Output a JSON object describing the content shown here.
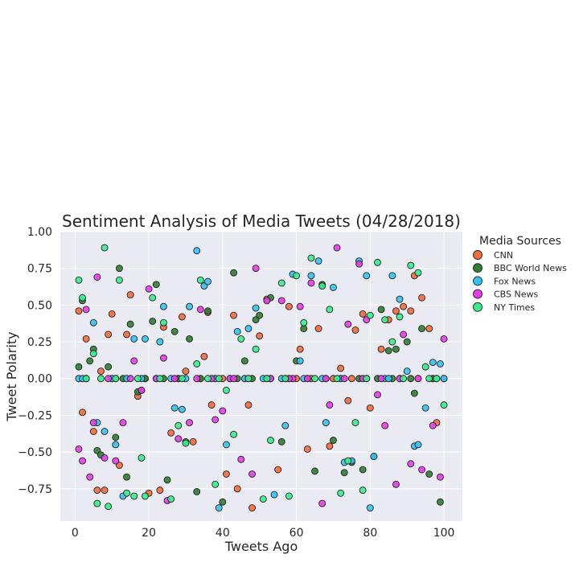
{
  "chart_data": {
    "type": "scatter",
    "title": "Sentiment Analysis of Media Tweets (04/28/2018)",
    "xlabel": "Tweets Ago",
    "ylabel": "Tweet Polarity",
    "xlim": [
      -4,
      105
    ],
    "ylim": [
      -0.97,
      1.0
    ],
    "xticks": [
      0,
      20,
      40,
      60,
      80,
      100
    ],
    "yticks": [
      -0.75,
      -0.5,
      -0.25,
      0.0,
      0.25,
      0.5,
      0.75,
      1.0
    ],
    "xtick_labels": [
      "0",
      "20",
      "40",
      "60",
      "80",
      "100"
    ],
    "ytick_labels": [
      "−0.75",
      "−0.50",
      "−0.25",
      "0.00",
      "0.25",
      "0.50",
      "0.75",
      "1.00"
    ],
    "grid": true,
    "background": "#eaeaf2",
    "legend": {
      "title": "Media Sources",
      "placement": "outside-right"
    },
    "series": [
      {
        "name": "CNN",
        "color": "#f36a3d",
        "x": [
          1,
          2,
          3,
          6,
          7,
          8,
          10,
          12,
          15,
          20,
          23,
          26,
          29,
          32,
          35,
          37,
          41,
          44,
          47,
          50,
          52,
          55,
          58,
          61,
          63,
          66,
          69,
          72,
          74,
          76,
          78,
          80,
          83,
          85,
          87,
          89,
          91,
          92,
          94,
          96,
          98,
          100,
          5,
          9,
          11,
          14,
          17,
          19,
          24,
          28,
          30,
          34,
          36,
          40,
          43,
          46,
          48,
          53,
          57,
          60,
          64,
          70,
          75,
          79,
          88,
          93,
          97
        ],
        "y": [
          0.46,
          -0.23,
          0.27,
          -0.76,
          0.05,
          -0.76,
          0.44,
          -0.59,
          0.57,
          -0.78,
          -0.76,
          -0.37,
          0.42,
          -0.43,
          0.15,
          -0.18,
          -0.65,
          -0.75,
          -0.18,
          0.29,
          0.54,
          -0.62,
          0.49,
          0.2,
          -0.48,
          0.34,
          -0.46,
          0.07,
          -0.15,
          0.33,
          0.44,
          -0.2,
          0.2,
          0.4,
          0.46,
          0.49,
          0.46,
          0.7,
          0.55,
          0.34,
          -0.3,
          0.0,
          -0.36,
          0.3,
          0.0,
          0.3,
          -0.12,
          0.0,
          0.35,
          0.0,
          0.05,
          0.0,
          0.45,
          0.0,
          0.43,
          0.0,
          -0.88,
          0.0,
          0.0,
          0.0,
          0.0,
          0.0,
          0.0,
          0.0,
          0.0,
          0.0,
          0.0
        ]
      },
      {
        "name": "BBC World News",
        "color": "#2f7d32",
        "x": [
          1,
          2,
          4,
          5,
          6,
          7,
          9,
          11,
          12,
          14,
          15,
          17,
          18,
          21,
          22,
          25,
          27,
          30,
          31,
          33,
          36,
          40,
          43,
          46,
          49,
          50,
          53,
          56,
          60,
          62,
          65,
          67,
          70,
          73,
          75,
          78,
          81,
          83,
          85,
          87,
          90,
          92,
          94,
          96,
          99,
          3,
          10,
          13,
          19,
          24,
          28,
          34,
          38,
          44,
          48,
          52,
          58,
          63,
          68,
          72,
          77,
          82,
          86,
          91,
          97
        ],
        "y": [
          0.08,
          0.53,
          0.12,
          0.2,
          -0.49,
          -0.52,
          0.08,
          -0.4,
          0.75,
          -0.67,
          0.37,
          -0.09,
          -0.08,
          0.39,
          0.64,
          -0.69,
          0.32,
          -0.43,
          0.27,
          -0.77,
          0.46,
          -0.84,
          0.72,
          0.12,
          0.4,
          0.43,
          0.55,
          -0.43,
          0.12,
          0.34,
          -0.63,
          0.64,
          -0.42,
          -0.64,
          -0.57,
          -0.62,
          -0.53,
          0.47,
          0.19,
          0.2,
          0.25,
          -0.1,
          0.34,
          -0.65,
          -0.84,
          0.0,
          0.0,
          0.0,
          0.0,
          0.0,
          0.0,
          0.0,
          0.0,
          0.0,
          0.0,
          0.0,
          0.0,
          0.0,
          0.0,
          0.0,
          0.0,
          0.0,
          0.0,
          0.0,
          0.0
        ]
      },
      {
        "name": "Fox News",
        "color": "#33c3f0",
        "x": [
          1,
          3,
          5,
          8,
          11,
          13,
          16,
          19,
          23,
          24,
          27,
          29,
          31,
          33,
          35,
          36,
          39,
          41,
          44,
          47,
          49,
          51,
          54,
          57,
          59,
          61,
          64,
          66,
          68,
          70,
          73,
          75,
          77,
          79,
          81,
          84,
          86,
          88,
          90,
          92,
          95,
          97,
          99,
          100,
          2,
          6,
          10,
          14,
          18,
          22,
          26,
          30,
          38,
          42,
          46,
          53,
          56,
          62,
          67,
          72,
          80,
          85,
          93,
          98
        ],
        "y": [
          0.0,
          0.0,
          0.38,
          -0.36,
          -0.45,
          -0.8,
          0.27,
          0.27,
          0.25,
          0.49,
          -0.2,
          -0.21,
          0.49,
          0.87,
          0.63,
          0.66,
          -0.88,
          -0.45,
          0.32,
          0.34,
          0.48,
          0.0,
          -0.79,
          -0.32,
          0.71,
          0.12,
          0.7,
          0.8,
          -0.3,
          0.62,
          -0.57,
          -0.56,
          0.8,
          0.7,
          -0.53,
          0.0,
          0.7,
          0.54,
          0.05,
          -0.46,
          -0.2,
          0.11,
          0.1,
          0.0,
          0.0,
          -0.3,
          0.0,
          0.0,
          0.0,
          0.0,
          0.0,
          0.0,
          0.0,
          0.0,
          0.0,
          0.0,
          0.0,
          0.0,
          0.0,
          0.0,
          -0.88,
          0.0,
          -0.45,
          0.0
        ]
      },
      {
        "name": "CBS News",
        "color": "#e83ce8",
        "x": [
          1,
          2,
          3,
          5,
          6,
          8,
          11,
          13,
          16,
          18,
          20,
          24,
          25,
          28,
          31,
          34,
          38,
          40,
          42,
          45,
          48,
          49,
          52,
          56,
          59,
          61,
          64,
          67,
          69,
          71,
          74,
          77,
          79,
          82,
          84,
          87,
          89,
          91,
          94,
          97,
          100,
          4,
          9,
          15,
          22,
          27,
          33,
          37,
          43,
          47,
          53,
          58,
          63,
          68,
          73,
          78,
          83,
          88,
          93,
          99
        ],
        "y": [
          -0.48,
          -0.56,
          0.47,
          -0.3,
          0.69,
          -0.54,
          -0.56,
          -0.3,
          0.12,
          -0.08,
          0.61,
          0.14,
          -0.83,
          -0.41,
          -0.3,
          0.47,
          -0.28,
          -0.22,
          0.0,
          -0.55,
          -0.65,
          0.75,
          0.53,
          0.53,
          0.0,
          0.49,
          0.65,
          -0.85,
          -0.18,
          0.89,
          0.37,
          0.78,
          0.4,
          -0.11,
          -0.32,
          -0.72,
          0.3,
          -0.58,
          -0.62,
          -0.32,
          0.27,
          -0.67,
          0.0,
          0.0,
          0.0,
          0.0,
          0.0,
          0.0,
          0.0,
          0.0,
          0.0,
          0.0,
          0.0,
          0.0,
          0.0,
          0.0,
          0.0,
          0.0,
          0.0,
          -0.67
        ]
      },
      {
        "name": "NY Times",
        "color": "#36ee8c",
        "x": [
          1,
          2,
          5,
          6,
          8,
          9,
          12,
          14,
          16,
          18,
          19,
          21,
          24,
          26,
          28,
          30,
          33,
          34,
          38,
          41,
          43,
          45,
          49,
          51,
          53,
          56,
          58,
          60,
          62,
          64,
          67,
          69,
          72,
          74,
          76,
          78,
          80,
          82,
          84,
          86,
          88,
          91,
          93,
          95,
          98,
          100,
          3,
          7,
          11,
          17,
          23,
          29,
          36,
          39,
          47,
          52,
          57,
          65,
          71,
          79,
          89,
          96
        ],
        "y": [
          0.67,
          0.55,
          0.17,
          -0.85,
          0.89,
          -0.87,
          0.67,
          -0.78,
          -0.8,
          -0.54,
          -0.8,
          0.55,
          0.38,
          -0.82,
          -0.32,
          -0.44,
          0.1,
          0.67,
          -0.72,
          -0.08,
          -0.38,
          0.27,
          0.2,
          -0.82,
          -0.42,
          0.65,
          -0.8,
          0.7,
          0.38,
          0.82,
          0.63,
          0.47,
          -0.78,
          -0.56,
          -0.3,
          -0.76,
          0.43,
          0.79,
          0.4,
          0.25,
          0.42,
          0.77,
          0.72,
          0.08,
          0.0,
          -0.18,
          0.0,
          0.0,
          0.0,
          0.0,
          0.0,
          0.0,
          0.0,
          0.0,
          0.0,
          0.0,
          0.0,
          0.0,
          0.0,
          0.0,
          0.0,
          0.0
        ]
      }
    ]
  }
}
